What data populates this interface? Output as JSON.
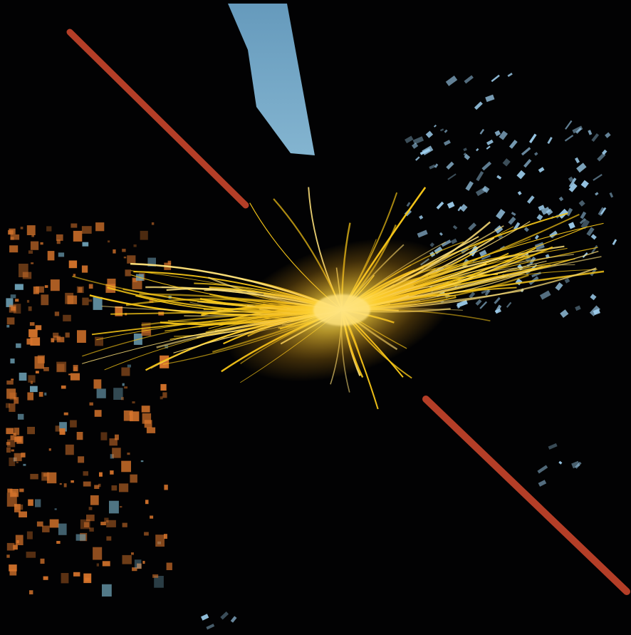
{
  "scene": {
    "subject": "particle-collision-event-display",
    "background_color": "#020203",
    "track_color": "#f5c518",
    "track_core_color": "#ffe27a",
    "muon_color": "#c8452c",
    "calorimeter_hit_color": "#d8752c",
    "tower_color": "#7fb7d9",
    "hit_blue_color": "#9fd0f0",
    "track_count": 180,
    "lines": [
      "muon-upper-left",
      "muon-lower-right"
    ]
  }
}
